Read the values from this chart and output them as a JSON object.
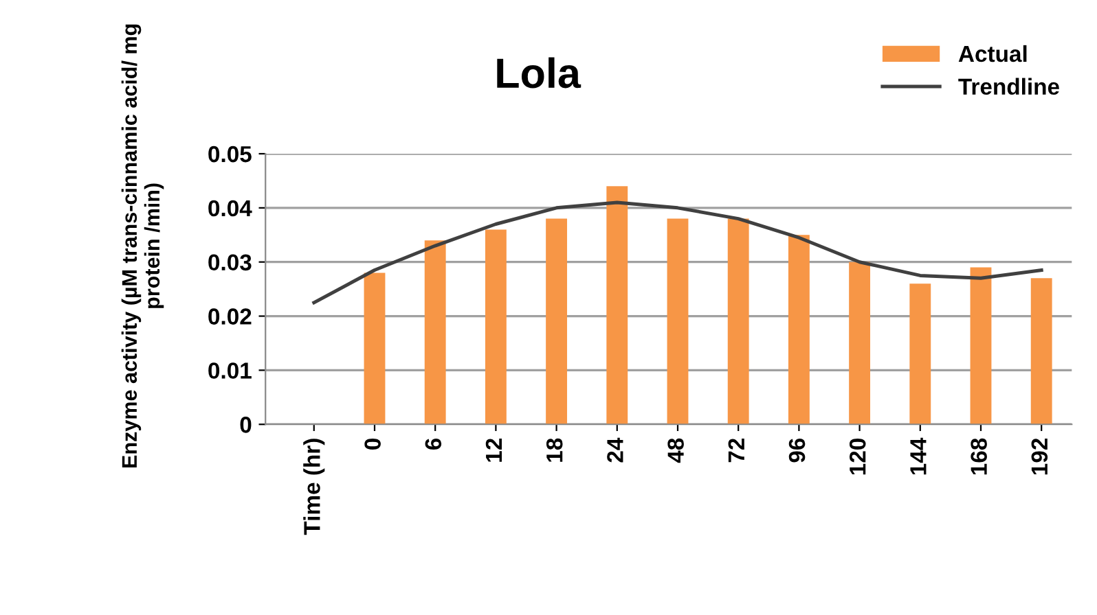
{
  "chart_data": {
    "type": "bar",
    "title": "Lola",
    "ylabel": "Enzyme activity (µM trans-cinnamic acid/ mg protein /min)",
    "categories": [
      "Time (hr)",
      "0",
      "6",
      "12",
      "18",
      "24",
      "48",
      "72",
      "96",
      "120",
      "144",
      "168",
      "192"
    ],
    "series": [
      {
        "name": "Actual",
        "color": "#f79646",
        "values": [
          null,
          0.028,
          0.034,
          0.036,
          0.038,
          0.044,
          0.038,
          0.038,
          0.035,
          0.03,
          0.026,
          0.029,
          0.027
        ]
      },
      {
        "name": "Trendline",
        "type": "line",
        "color": "#404040",
        "values": [
          0.0225,
          0.0285,
          0.033,
          0.037,
          0.04,
          0.041,
          0.04,
          0.038,
          0.0345,
          0.03,
          0.0275,
          0.027,
          0.0285
        ]
      }
    ],
    "ylim": [
      0,
      0.05
    ],
    "yticks": [
      {
        "value": 0,
        "label": "0"
      },
      0.01,
      0.02,
      0.03,
      0.04,
      0.05
    ],
    "grid": "y",
    "legend": "top right"
  }
}
